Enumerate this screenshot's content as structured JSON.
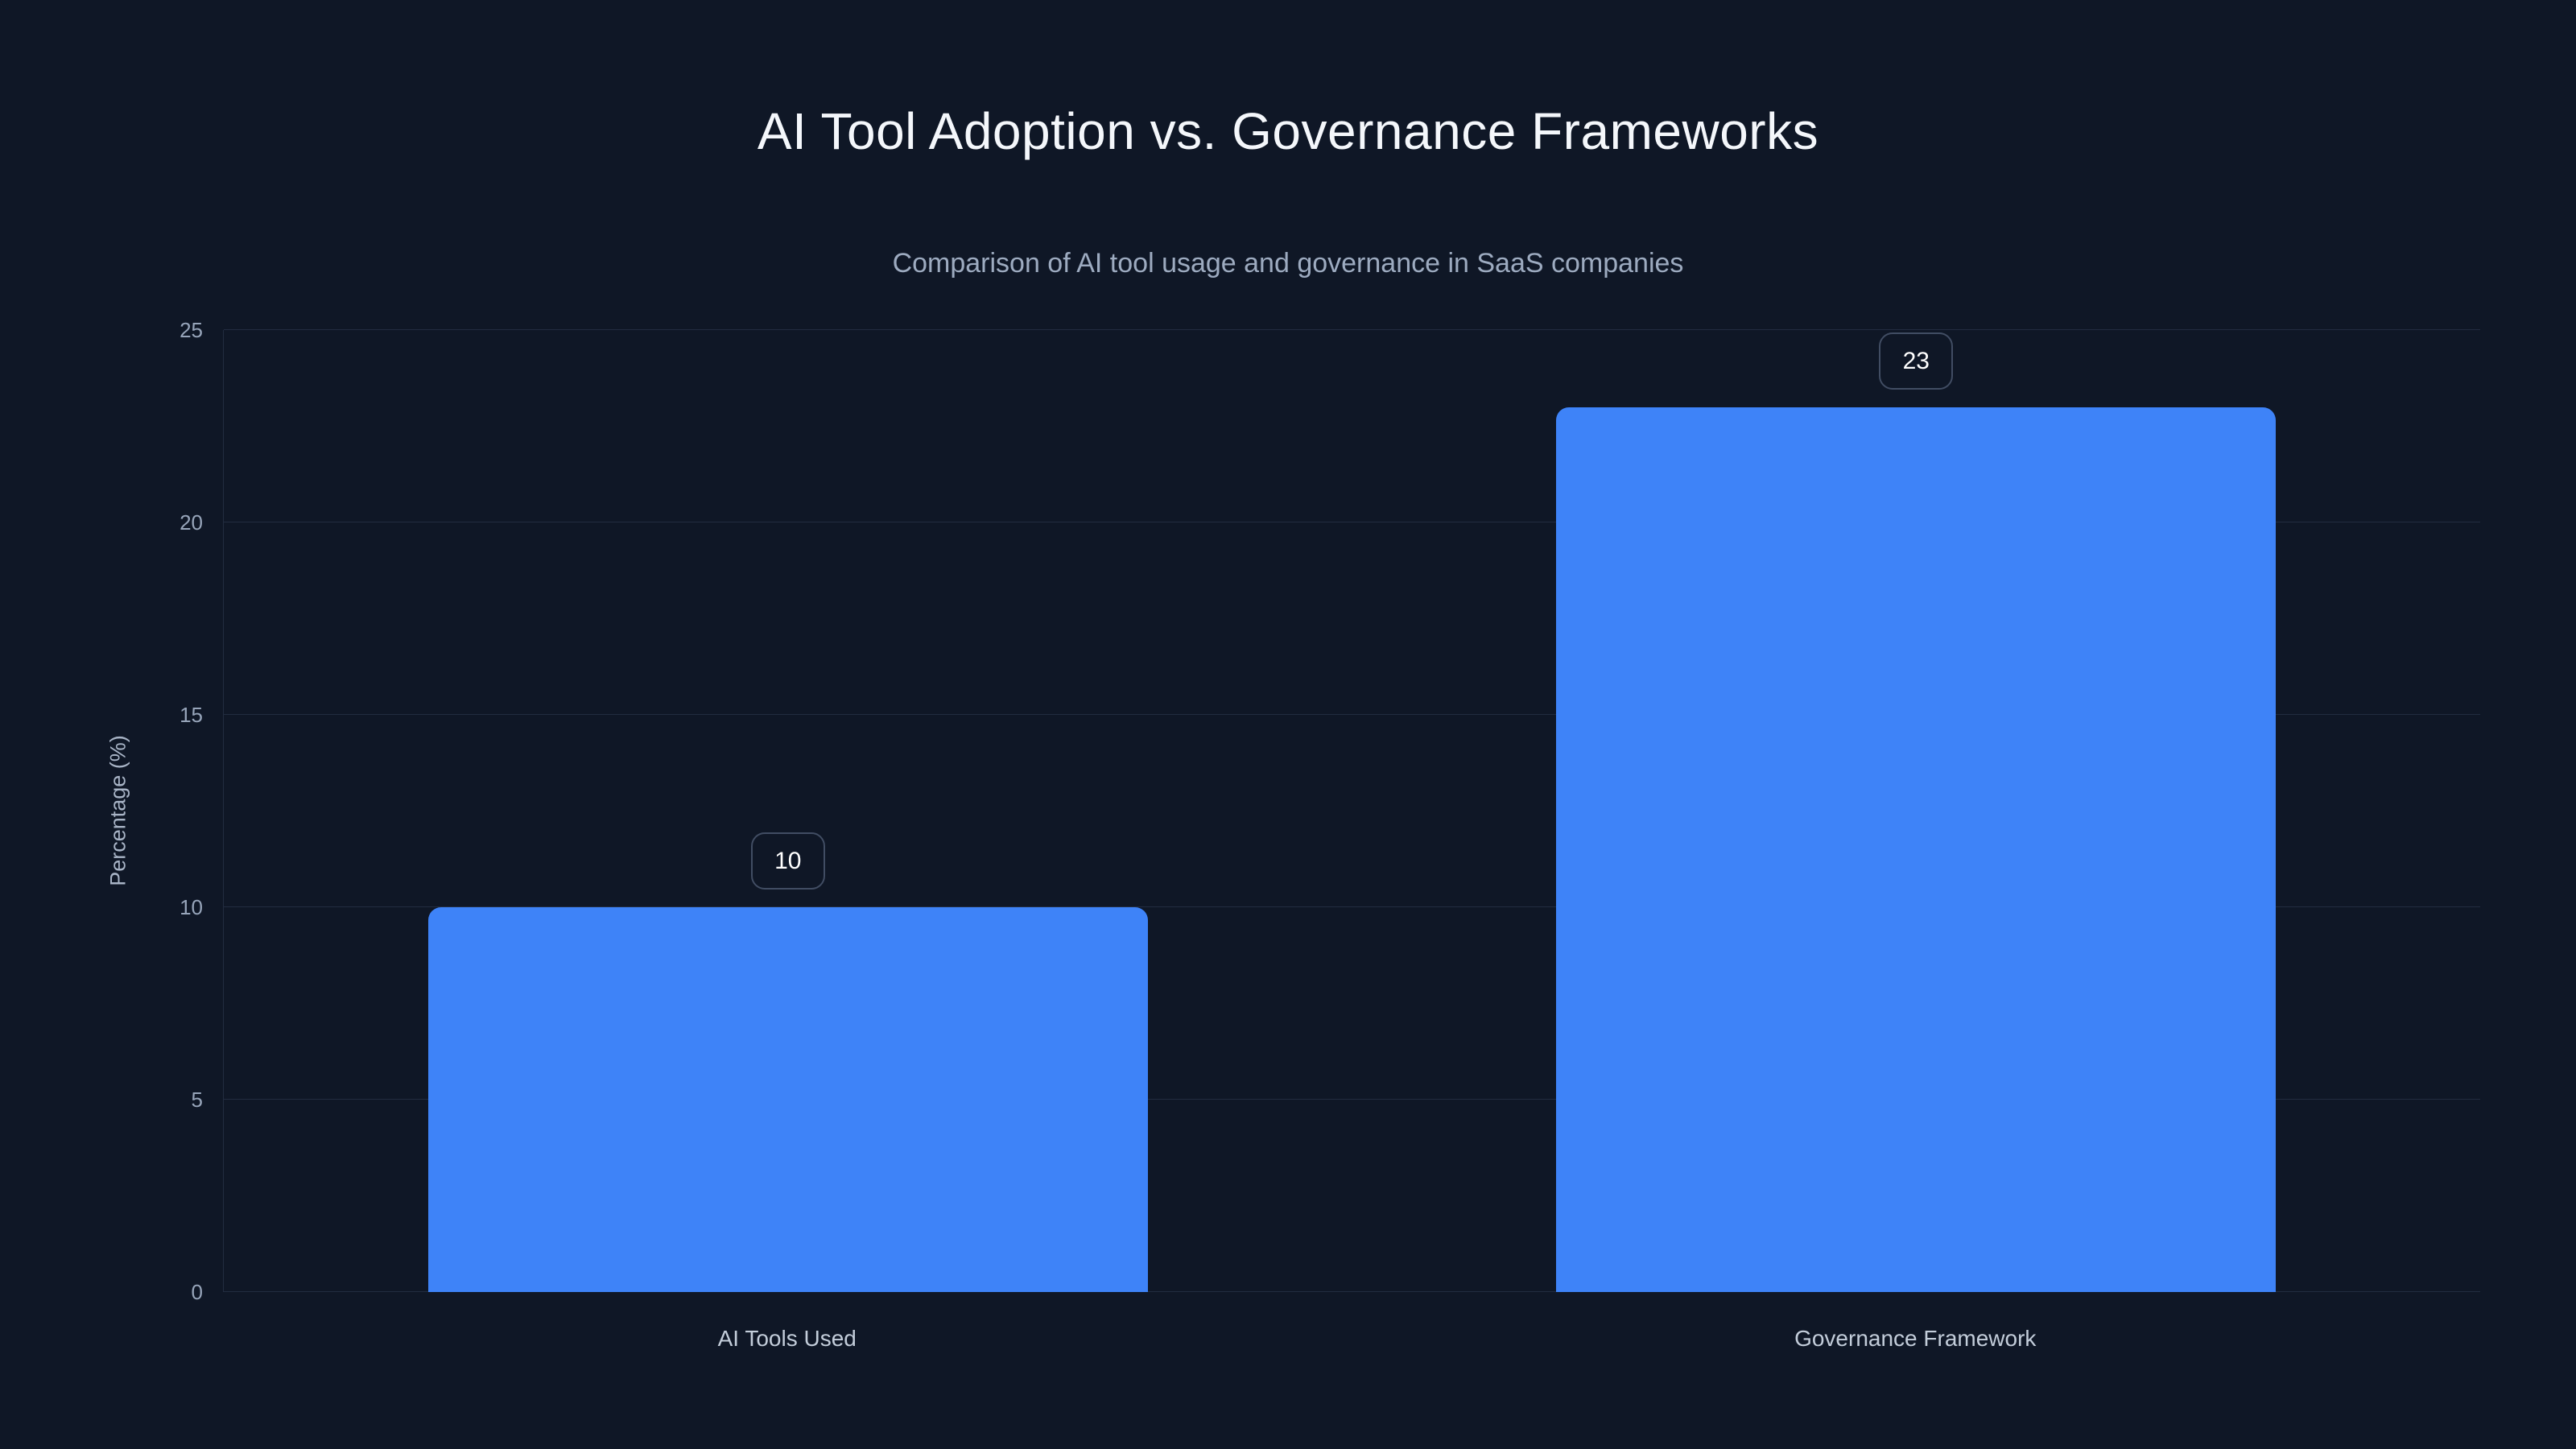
{
  "chart_data": {
    "type": "bar",
    "title": "AI Tool Adoption vs. Governance Frameworks",
    "subtitle": "Comparison of AI tool usage and governance in SaaS companies",
    "ylabel": "Percentage (%)",
    "xlabel": "",
    "categories": [
      "AI Tools Used",
      "Governance Framework"
    ],
    "values": [
      10,
      23
    ],
    "value_labels": [
      "10",
      "23"
    ],
    "ylim": [
      0,
      25
    ],
    "yticks": [
      0,
      5,
      10,
      15,
      20,
      25
    ],
    "grid": "horizontal",
    "legend_position": "none",
    "colors": {
      "background": "#0f1726",
      "bar": "#3e83f8",
      "gridline": "#222c40",
      "title_text": "#f4f7fb",
      "subtitle_text": "#9dabc0",
      "tick_text": "#97a5ba",
      "axis_label_text": "#a8b4c6",
      "category_text": "#c3cdda",
      "badge_border": "#414d63",
      "badge_text": "#ffffff"
    }
  }
}
